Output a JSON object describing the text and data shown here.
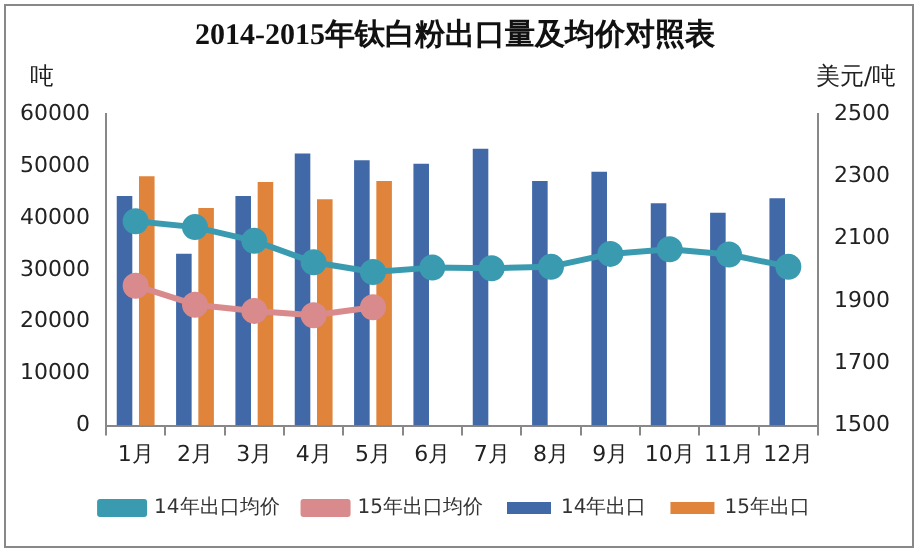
{
  "chart_data": {
    "type": "bar",
    "title": "2014-2015年钛白粉出口量及均价对照表",
    "ylabel": "吨",
    "y2label": "美元/吨",
    "categories": [
      "1月",
      "2月",
      "3月",
      "4月",
      "5月",
      "6月",
      "7月",
      "8月",
      "9月",
      "10月",
      "11月",
      "12月"
    ],
    "series": [
      {
        "name": "14年出口",
        "color": "#4169a8",
        "values": [
          44200,
          33100,
          44200,
          52400,
          51100,
          50400,
          53300,
          47100,
          48900,
          42800,
          41000,
          43800
        ]
      },
      {
        "name": "15年出口",
        "color": "#e0843c",
        "values": [
          48000,
          41900,
          46900,
          43600,
          47100,
          null,
          null,
          null,
          null,
          null,
          null,
          null
        ]
      },
      {
        "name": "14年出口均价",
        "type": "line",
        "axis": "y2",
        "color": "#3a9bb0",
        "values": [
          2156,
          2137,
          2093,
          2024,
          1993,
          2007,
          2005,
          2010,
          2051,
          2066,
          2049,
          2010
        ]
      },
      {
        "name": "15年出口均价",
        "type": "line",
        "axis": "y2",
        "color": "#d98a8c",
        "values": [
          1949,
          1888,
          1868,
          1854,
          1880,
          null,
          null,
          null,
          null,
          null,
          null,
          null
        ]
      }
    ],
    "ylim": [
      0,
      60000
    ],
    "yticks": [
      0,
      10000,
      20000,
      30000,
      40000,
      50000,
      60000
    ],
    "y2lim": [
      1500,
      2500
    ],
    "y2ticks": [
      1500,
      1700,
      1900,
      2100,
      2300,
      2500
    ],
    "grid": false,
    "legend": "bottom",
    "marker": "circle",
    "line_style": "solid"
  }
}
